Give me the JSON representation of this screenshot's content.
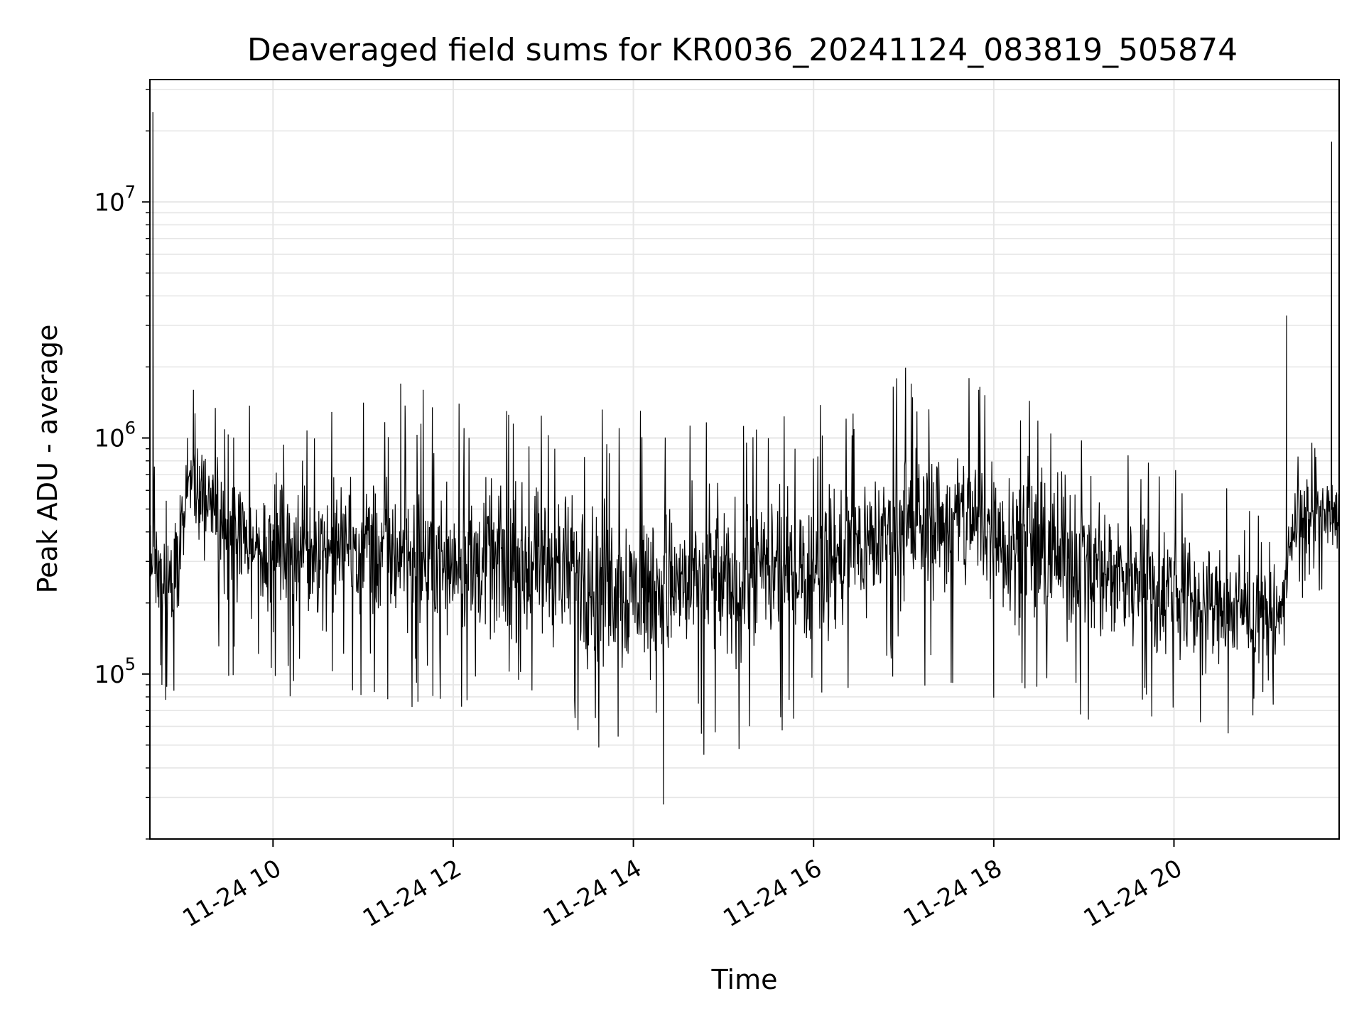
{
  "chart_data": {
    "type": "line",
    "title": "Deaveraged field sums for KR0036_20241124_083819_505874",
    "xlabel": "Time",
    "ylabel": "Peak ADU - average",
    "yscale": "log",
    "ylim": [
      20000,
      33000000
    ],
    "xlim": [
      "11-24 08:38",
      "11-24 21:50"
    ],
    "x_ticks": [
      "11-24 10",
      "11-24 12",
      "11-24 14",
      "11-24 16",
      "11-24 18",
      "11-24 20"
    ],
    "y_ticks": [
      {
        "value": 100000,
        "base": "10",
        "exp": "5"
      },
      {
        "value": 1000000,
        "base": "10",
        "exp": "6"
      },
      {
        "value": 10000000,
        "base": "10",
        "exp": "7"
      }
    ],
    "grid": true,
    "line_color": "#000000",
    "series": [
      {
        "points": [
          [
            "11-24 08:38",
            300000
          ],
          [
            "11-24 08:40",
            24000000
          ],
          [
            "11-24 08:42",
            200000
          ],
          [
            "11-24 08:46",
            90000
          ],
          [
            "11-24 08:50",
            350000
          ],
          [
            "11-24 08:54",
            85000
          ],
          [
            "11-24 08:58",
            400000
          ],
          [
            "11-24 09:03",
            1000000
          ],
          [
            "11-24 09:07",
            1600000
          ],
          [
            "11-24 09:12",
            650000
          ],
          [
            "11-24 09:20",
            700000
          ],
          [
            "11-24 09:30",
            450000
          ],
          [
            "11-24 09:45",
            500000
          ],
          [
            "11-24 10:00",
            430000
          ],
          [
            "11-24 10:20",
            450000
          ],
          [
            "11-24 10:40",
            420000
          ],
          [
            "11-24 11:00",
            450000
          ],
          [
            "11-24 11:15",
            500000
          ],
          [
            "11-24 11:25",
            1700000
          ],
          [
            "11-24 11:30",
            500000
          ],
          [
            "11-24 11:40",
            1600000
          ],
          [
            "11-24 11:50",
            420000
          ],
          [
            "11-24 12:10",
            400000
          ],
          [
            "11-24 12:30",
            380000
          ],
          [
            "11-24 12:40",
            1150000
          ],
          [
            "11-24 12:50",
            380000
          ],
          [
            "11-24 13:10",
            360000
          ],
          [
            "11-24 13:30",
            340000
          ],
          [
            "11-24 13:50",
            320000
          ],
          [
            "11-24 14:10",
            300000
          ],
          [
            "11-24 14:20",
            28000
          ],
          [
            "11-24 14:25",
            300000
          ],
          [
            "11-24 14:40",
            310000
          ],
          [
            "11-24 15:00",
            300000
          ],
          [
            "11-24 15:20",
            330000
          ],
          [
            "11-24 15:45",
            350000
          ],
          [
            "11-24 16:05",
            380000
          ],
          [
            "11-24 16:25",
            400000
          ],
          [
            "11-24 16:45",
            450000
          ],
          [
            "11-24 17:00",
            600000
          ],
          [
            "11-24 17:05",
            1700000
          ],
          [
            "11-24 17:20",
            650000
          ],
          [
            "11-24 17:40",
            700000
          ],
          [
            "11-24 17:50",
            1600000
          ],
          [
            "11-24 18:00",
            650000
          ],
          [
            "11-24 18:20",
            550000
          ],
          [
            "11-24 18:40",
            450000
          ],
          [
            "11-24 19:00",
            380000
          ],
          [
            "11-24 19:20",
            320000
          ],
          [
            "11-24 19:40",
            280000
          ],
          [
            "11-24 20:00",
            250000
          ],
          [
            "11-24 20:20",
            220000
          ],
          [
            "11-24 20:40",
            210000
          ],
          [
            "11-24 21:00",
            190000
          ],
          [
            "11-24 21:10",
            150000
          ],
          [
            "11-24 21:15",
            3300000
          ],
          [
            "11-24 21:18",
            420000
          ],
          [
            "11-24 21:30",
            450000
          ],
          [
            "11-24 21:40",
            500000
          ],
          [
            "11-24 21:45",
            18000000
          ],
          [
            "11-24 21:47",
            520000
          ],
          [
            "11-24 21:50",
            550000
          ]
        ],
        "noise_envelope": [
          [
            "11-24 08:38",
            200000,
            600000
          ],
          [
            "11-24 08:50",
            90000,
            450000
          ],
          [
            "11-24 09:05",
            400000,
            1200000
          ],
          [
            "11-24 09:30",
            150000,
            900000
          ],
          [
            "11-24 10:00",
            130000,
            900000
          ],
          [
            "11-24 11:00",
            130000,
            900000
          ],
          [
            "11-24 12:00",
            110000,
            850000
          ],
          [
            "11-24 13:00",
            100000,
            800000
          ],
          [
            "11-24 14:00",
            70000,
            750000
          ],
          [
            "11-24 15:00",
            80000,
            750000
          ],
          [
            "11-24 16:00",
            100000,
            800000
          ],
          [
            "11-24 17:00",
            150000,
            1200000
          ],
          [
            "11-24 17:45",
            150000,
            1300000
          ],
          [
            "11-24 18:30",
            110000,
            1000000
          ],
          [
            "11-24 19:30",
            100000,
            650000
          ],
          [
            "11-24 20:30",
            80000,
            450000
          ],
          [
            "11-24 21:10",
            100000,
            300000
          ],
          [
            "11-24 21:20",
            250000,
            750000
          ],
          [
            "11-24 21:50",
            300000,
            800000
          ]
        ]
      }
    ]
  }
}
